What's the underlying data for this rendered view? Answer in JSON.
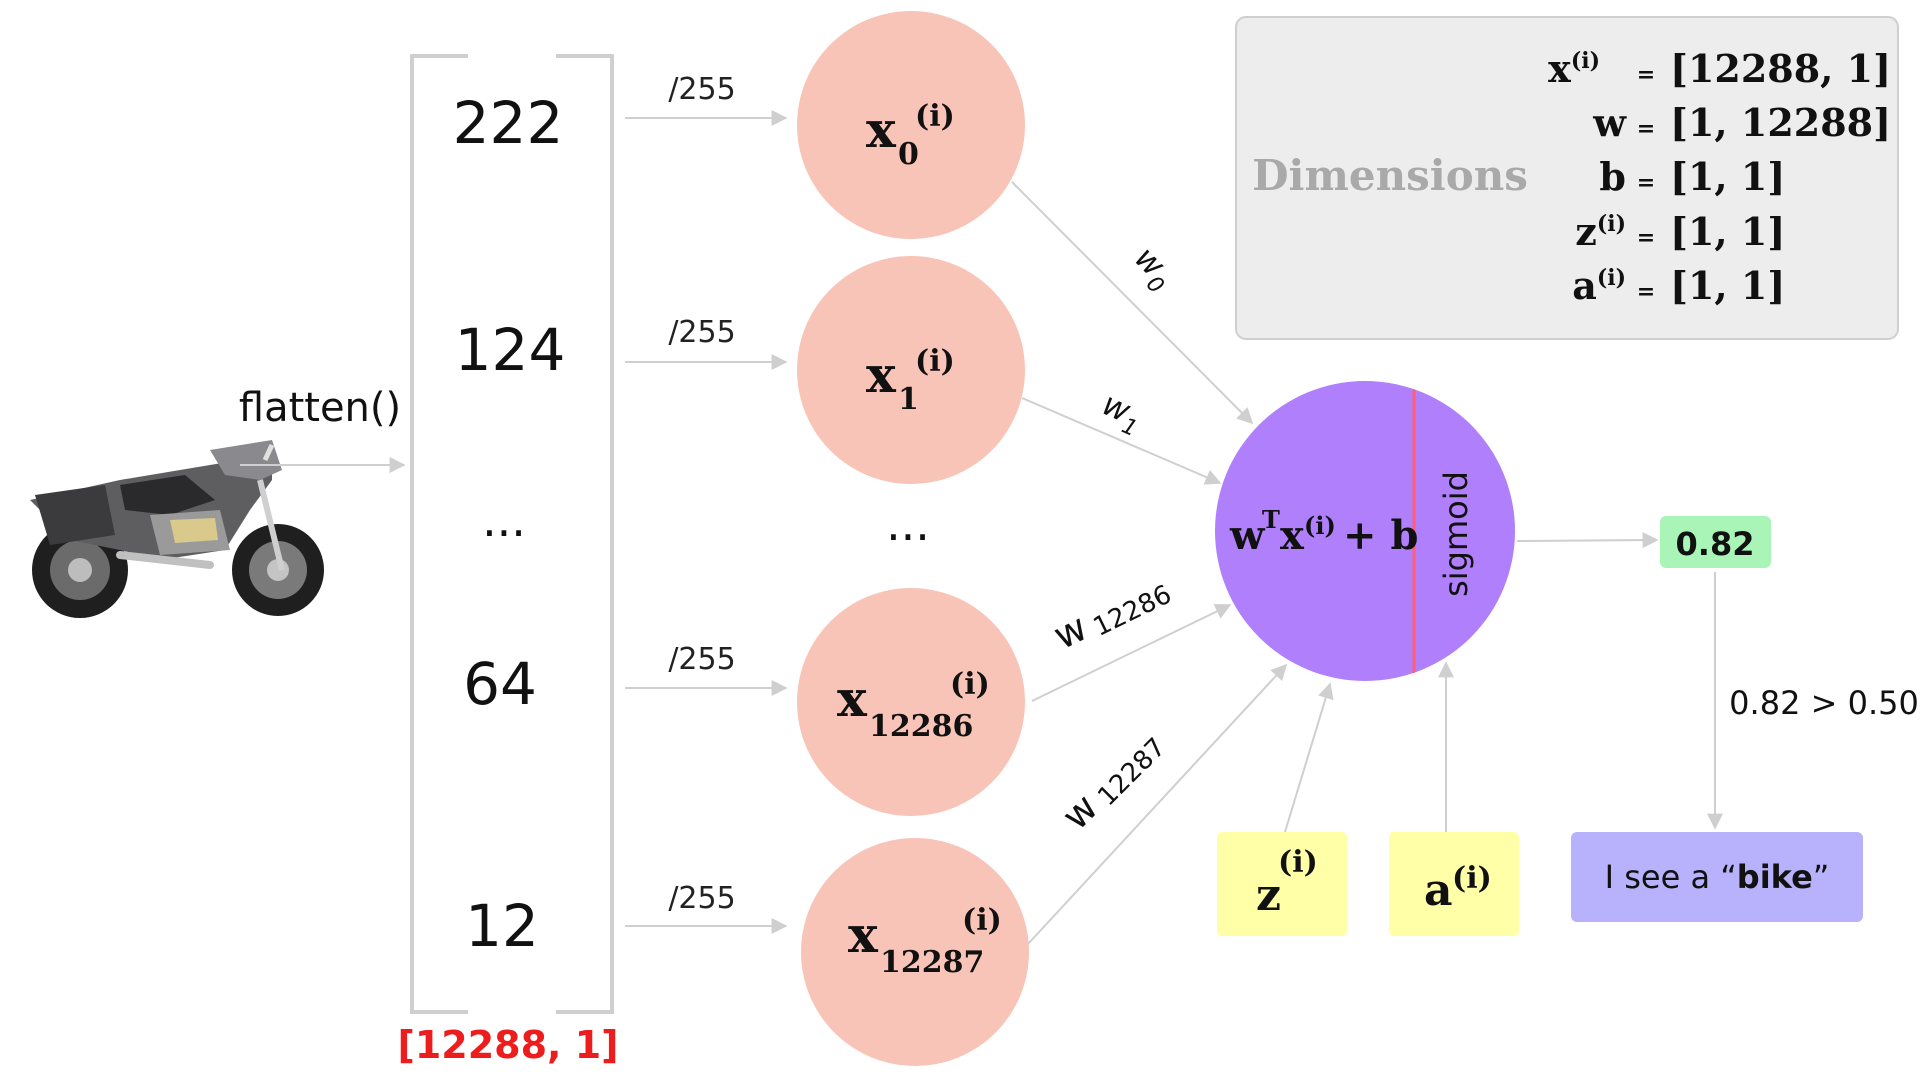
{
  "colors": {
    "input_node_fill": "#f9c4b8",
    "neuron_fill": "#b07ffb",
    "neuron_divider": "#ff5e7a",
    "output_box_fill": "#a9f5b7",
    "label_box_fill": "#ffffa8",
    "result_box_fill": "#b7b2fb",
    "dimensions_panel_fill": "#ededed",
    "dimensions_panel_border": "#cfcfcf",
    "arrow_color": "#cfcfcf",
    "bracket_color": "#cfcfcf",
    "vector_shape_color": "#ee1d1d",
    "dimensions_label_color": "#a9a9a9"
  },
  "image": {
    "icon": "motorbike-icon"
  },
  "flatten_label": "flatten()",
  "vector": {
    "values": [
      "222",
      "124",
      "...",
      "64",
      "12"
    ],
    "shape_label": "[12288, 1]"
  },
  "normalize_label": "/255",
  "inputs": {
    "nodes": [
      {
        "base": "x",
        "sub": "0",
        "sup": "(i)"
      },
      {
        "base": "x",
        "sub": "1",
        "sup": "(i)"
      },
      {
        "base": "x",
        "sub": "12286",
        "sup": "(i)"
      },
      {
        "base": "x",
        "sub": "12287",
        "sup": "(i)"
      }
    ],
    "ellipsis": "..."
  },
  "weights": [
    {
      "base": "w",
      "sub": "0"
    },
    {
      "base": "w",
      "sub": "1"
    },
    {
      "base": "w",
      "sub": "12286"
    },
    {
      "base": "w",
      "sub": "12287"
    }
  ],
  "neuron": {
    "formula_w": "w",
    "formula_T": "T",
    "formula_x": "x",
    "formula_sup": "(i)",
    "formula_rest": "+ b",
    "activation_label": "sigmoid"
  },
  "output": {
    "value": "0.82",
    "comparison": "0.82 > 0.50",
    "result_prefix": "I see a “",
    "result_bold": "bike",
    "result_suffix": "”"
  },
  "labels": {
    "z_base": "z",
    "z_sup": "(i)",
    "a_base": "a",
    "a_sup": "(i)"
  },
  "dimensions": {
    "title": "Dimensions",
    "rows": [
      {
        "base": "x",
        "sup": "(i)",
        "eq": "=",
        "value": "[12288, 1]"
      },
      {
        "base": "w",
        "sup": "",
        "eq": "=",
        "value": "[1, 12288]"
      },
      {
        "base": "b",
        "sup": "",
        "eq": "=",
        "value": "[1, 1]"
      },
      {
        "base": "z",
        "sup": "(i)",
        "eq": "=",
        "value": "[1, 1]"
      },
      {
        "base": "a",
        "sup": "(i)",
        "eq": "=",
        "value": "[1, 1]"
      }
    ]
  }
}
